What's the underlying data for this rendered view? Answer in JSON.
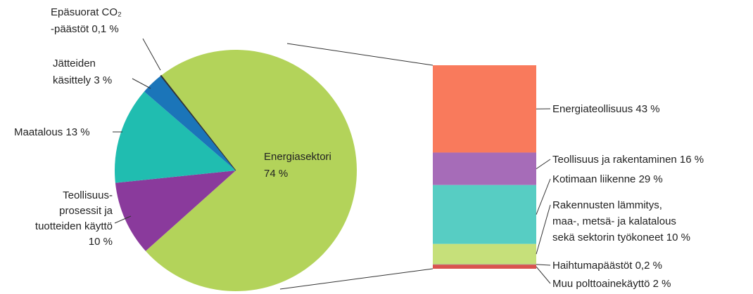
{
  "chart_data": {
    "type": "pie-of-bar",
    "pie": {
      "labels": [
        [
          "Energiasektori",
          "74 %"
        ],
        [
          "Teollisuus-",
          "prosessit ja",
          "tuotteiden käyttö",
          "10 %"
        ],
        [
          "Maatalous 13 %"
        ],
        [
          "Jätteiden",
          "käsittely 3 %"
        ],
        [
          "Epäsuorat CO₂",
          "-päästöt 0,1 %"
        ]
      ],
      "values": [
        74,
        10,
        13,
        3,
        0.1
      ],
      "colors": [
        "#b3d35a",
        "#8a3a9c",
        "#20bdb0",
        "#1b75b9",
        "#333333"
      ]
    },
    "bar": {
      "labels": [
        [
          "Energiateollisuus 43 %"
        ],
        [
          "Teollisuus ja rakentaminen 16 %"
        ],
        [
          "Kotimaan liikenne 29 %"
        ],
        [
          "Rakennusten lämmitys,",
          "maa-, metsä- ja kalatalous",
          "sekä sektorin työkoneet 10 %"
        ],
        [
          "Haihtumapäästöt 0,2 %"
        ],
        [
          "Muu polttoainekäyttö 2 %"
        ]
      ],
      "values": [
        43,
        16,
        29,
        10,
        0.2,
        2
      ],
      "colors": [
        "#f97a5c",
        "#a66cb8",
        "#57cdc3",
        "#c6e07a",
        "#8a8a8a",
        "#d9534f"
      ]
    }
  }
}
